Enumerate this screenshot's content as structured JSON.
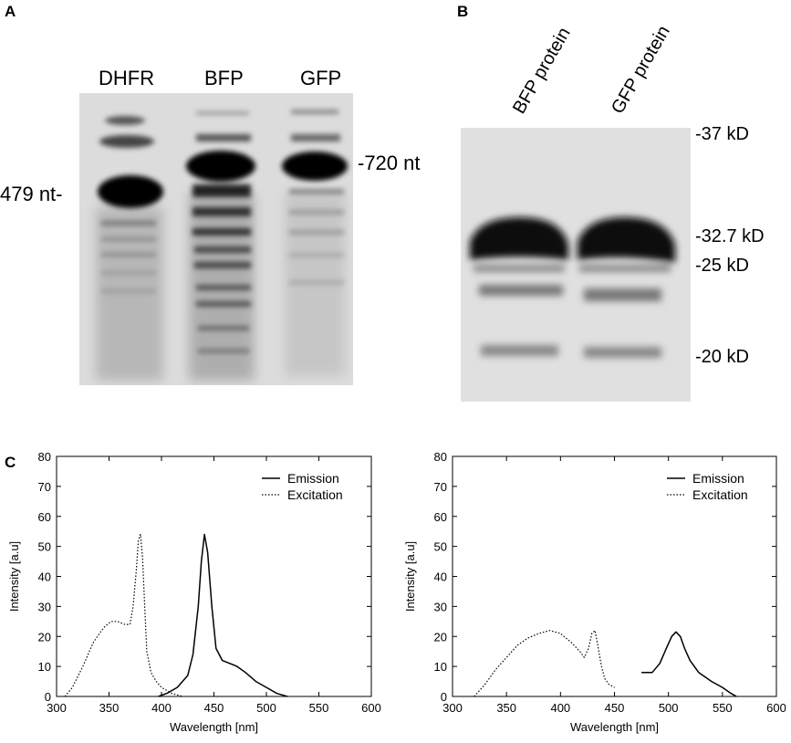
{
  "panels": {
    "a": {
      "letter": "A",
      "lanes": [
        "DHFR",
        "BFP",
        "GFP"
      ],
      "left_marker": "479 nt-",
      "right_marker": "-720 nt"
    },
    "b": {
      "letter": "B",
      "lanes": [
        "BFP protein",
        "GFP protein"
      ],
      "markers": [
        "-37 kD",
        "-32.7 kD",
        "-25 kD",
        "-20 kD"
      ]
    },
    "c": {
      "letter": "C"
    }
  },
  "chart_data": [
    {
      "type": "line",
      "xlabel": "Wavelength [nm]",
      "ylabel": "Intensity [a.u]",
      "xlim": [
        300,
        600
      ],
      "ylim": [
        0,
        80
      ],
      "xticks": [
        300,
        350,
        400,
        450,
        500,
        550,
        600
      ],
      "yticks": [
        0,
        10,
        20,
        30,
        40,
        50,
        60,
        70,
        80
      ],
      "legend_position": "top-right",
      "series": [
        {
          "name": "Emission",
          "style": "solid",
          "x": [
            397,
            405,
            415,
            425,
            430,
            435,
            438,
            441,
            444,
            448,
            452,
            458,
            465,
            472,
            480,
            490,
            500,
            510,
            520
          ],
          "y": [
            0,
            1,
            3,
            7,
            14,
            30,
            45,
            54,
            48,
            30,
            16,
            12,
            11,
            10,
            8,
            5,
            3,
            1,
            0
          ]
        },
        {
          "name": "Excitation",
          "style": "dotted",
          "x": [
            308,
            315,
            325,
            335,
            345,
            352,
            358,
            365,
            370,
            373,
            376,
            378,
            380,
            382,
            384,
            386,
            390,
            395,
            400,
            410,
            420
          ],
          "y": [
            0,
            3,
            10,
            18,
            23,
            25,
            25,
            24,
            24,
            30,
            42,
            52,
            54,
            46,
            30,
            15,
            8,
            5,
            3,
            1,
            0
          ]
        }
      ]
    },
    {
      "type": "line",
      "xlabel": "Wavelength [nm]",
      "ylabel": "Intensity [a.u]",
      "xlim": [
        300,
        600
      ],
      "ylim": [
        0,
        80
      ],
      "xticks": [
        300,
        350,
        400,
        450,
        500,
        550,
        600
      ],
      "yticks": [
        0,
        10,
        20,
        30,
        40,
        50,
        60,
        70,
        80
      ],
      "legend_position": "top-right",
      "series": [
        {
          "name": "Emission",
          "style": "solid",
          "x": [
            475,
            485,
            492,
            498,
            503,
            507,
            511,
            515,
            520,
            528,
            540,
            550,
            558,
            563
          ],
          "y": [
            8,
            8,
            11,
            16,
            20,
            21.5,
            20,
            16,
            12,
            8,
            5,
            3,
            1,
            0
          ]
        },
        {
          "name": "Excitation",
          "style": "dotted",
          "x": [
            320,
            330,
            340,
            350,
            360,
            370,
            380,
            390,
            400,
            410,
            418,
            422,
            426,
            429,
            432,
            435,
            438,
            441,
            445,
            450
          ],
          "y": [
            0,
            4,
            9,
            13,
            17,
            19.5,
            21,
            22,
            21,
            18,
            15,
            13,
            16,
            21,
            22,
            16,
            10,
            6,
            4,
            3
          ]
        }
      ]
    }
  ]
}
